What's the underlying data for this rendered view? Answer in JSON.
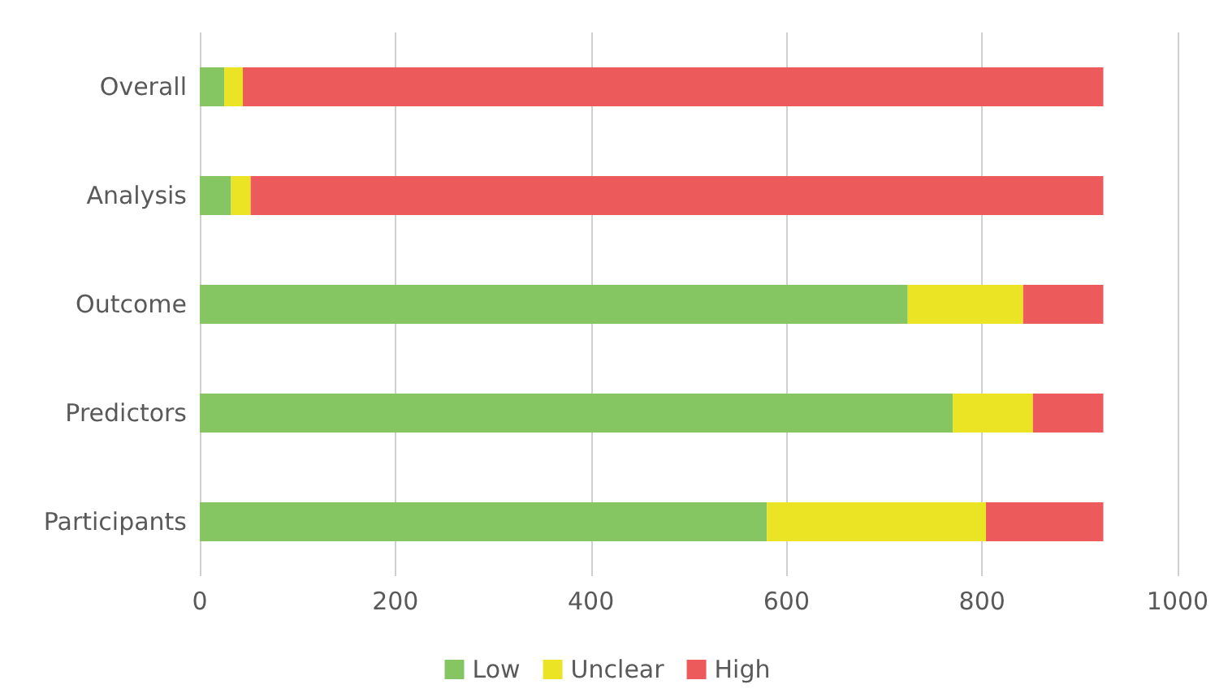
{
  "chart_data": {
    "type": "bar",
    "orientation": "horizontal",
    "stacked": true,
    "categories": [
      "Overall",
      "Analysis",
      "Outcome",
      "Predictors",
      "Participants"
    ],
    "series": [
      {
        "name": "Low",
        "color": "#86c662",
        "values": [
          25,
          32,
          724,
          770,
          580
        ]
      },
      {
        "name": "Unclear",
        "color": "#ebe424",
        "values": [
          19,
          20,
          118,
          82,
          224
        ]
      },
      {
        "name": "High",
        "color": "#ec5a5c",
        "values": [
          880,
          872,
          82,
          72,
          120
        ]
      }
    ],
    "xlim": [
      0,
      1000
    ],
    "xticks": [
      0,
      200,
      400,
      600,
      800,
      1000
    ],
    "grid": "x",
    "legend": "bottom"
  }
}
